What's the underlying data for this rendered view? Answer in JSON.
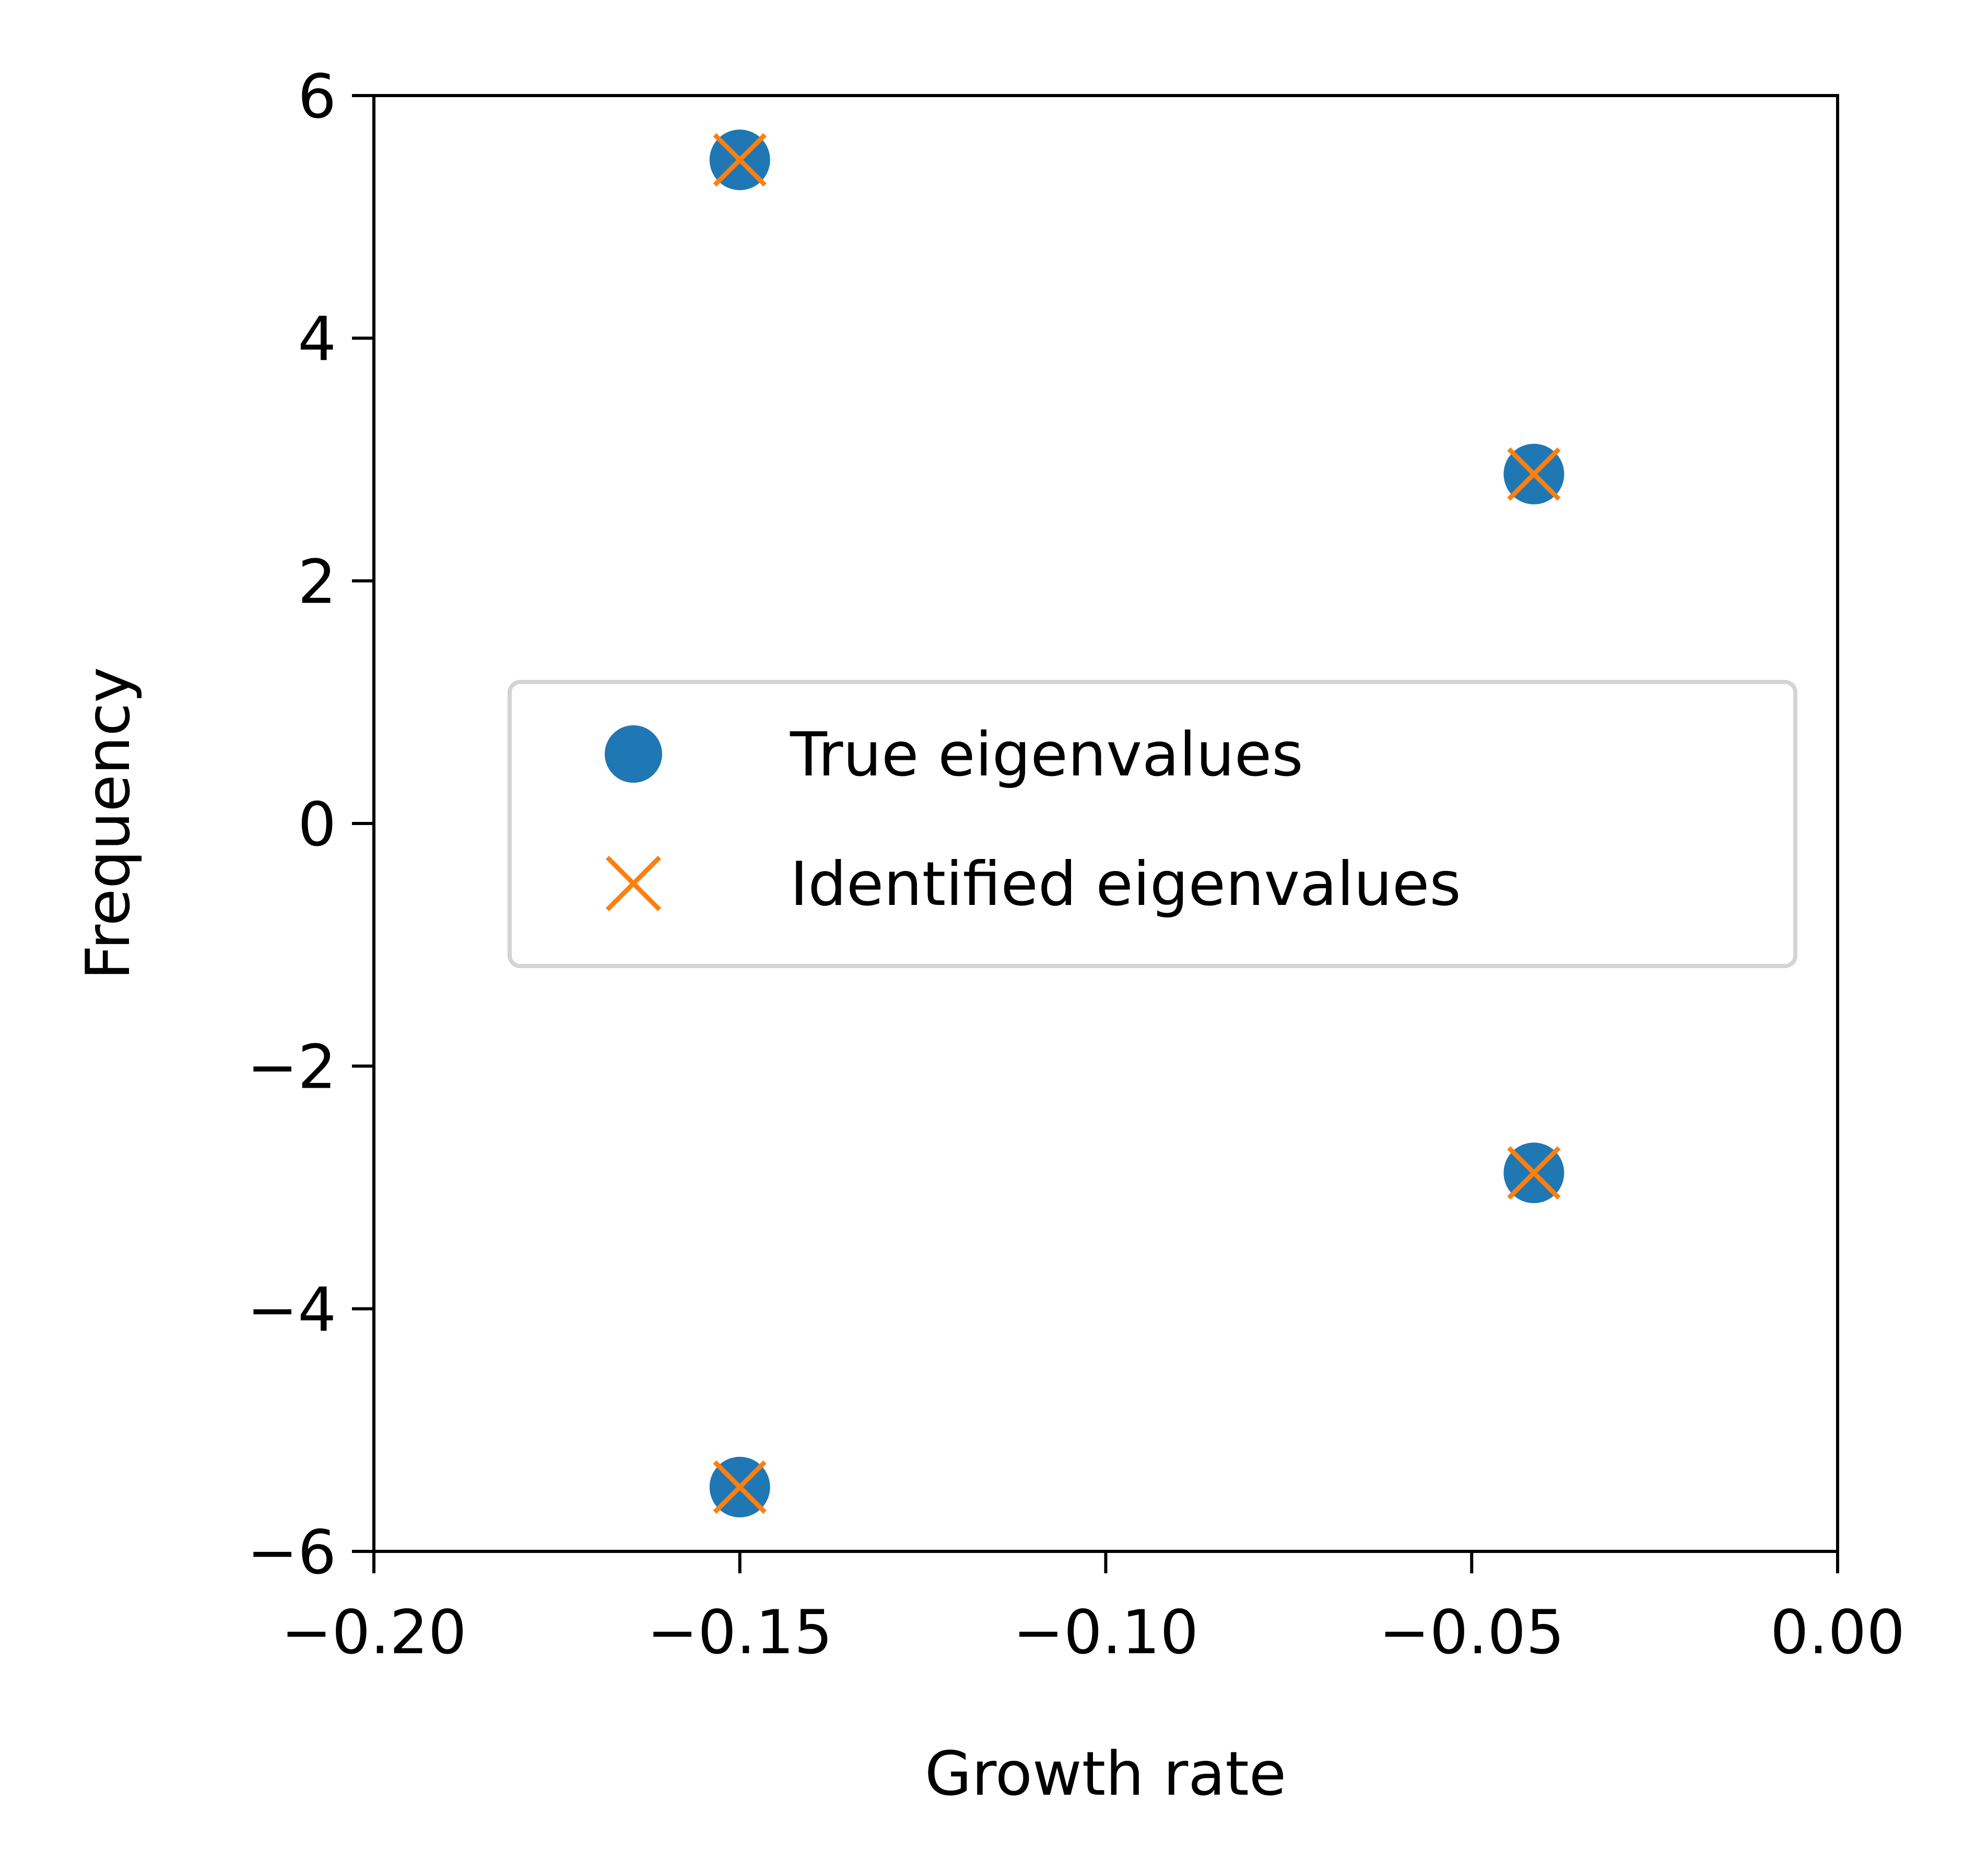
{
  "chart_data": {
    "type": "scatter",
    "title": "",
    "xlabel": "Growth rate",
    "ylabel": "Frequency",
    "xlim": [
      -0.2,
      0.0
    ],
    "ylim": [
      -6,
      6
    ],
    "xticks": [
      -0.2,
      -0.15,
      -0.1,
      -0.05,
      0.0
    ],
    "xtick_labels": [
      "−0.20",
      "−0.15",
      "−0.10",
      "−0.05",
      "0.00"
    ],
    "yticks": [
      6,
      4,
      2,
      0,
      -2,
      -4,
      -6
    ],
    "ytick_labels": [
      "6",
      "4",
      "2",
      "0",
      "−2",
      "−4",
      "−6"
    ],
    "grid": false,
    "legend_position": "center-right",
    "series": [
      {
        "name": "True eigenvalues",
        "marker": "circle",
        "color": "#1f77b4",
        "points": [
          {
            "x": -0.15,
            "y": 5.47
          },
          {
            "x": -0.0415,
            "y": 2.88
          },
          {
            "x": -0.0415,
            "y": -2.88
          },
          {
            "x": -0.15,
            "y": -5.47
          }
        ]
      },
      {
        "name": "Identified eigenvalues",
        "marker": "x",
        "color": "#ff7f0e",
        "points": [
          {
            "x": -0.15,
            "y": 5.47
          },
          {
            "x": -0.0415,
            "y": 2.88
          },
          {
            "x": -0.0415,
            "y": -2.88
          },
          {
            "x": -0.15,
            "y": -5.47
          }
        ]
      }
    ]
  }
}
